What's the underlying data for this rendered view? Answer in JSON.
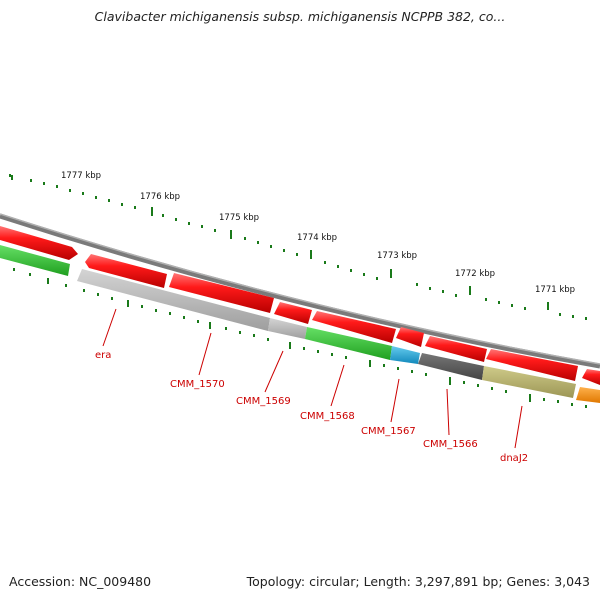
{
  "title": "Clavibacter michiganensis subsp. michiganensis NCPPB 382, co...",
  "footer": {
    "accession": "Accession: NC_009480",
    "summary": "Topology: circular; Length: 3,297,891 bp; Genes: 3,043"
  },
  "scale_labels": [
    "1777 kbp",
    "1776 kbp",
    "1775 kbp",
    "1774 kbp",
    "1773 kbp",
    "1772 kbp",
    "1771 kbp"
  ],
  "gene_labels": [
    "era",
    "CMM_1570",
    "CMM_1569",
    "CMM_1568",
    "CMM_1567",
    "CMM_1566",
    "dnaJ2"
  ],
  "colors": {
    "forward_gene": "#ee1111",
    "reverse_gray": "#b4b4b4",
    "reverse_green": "#33cc33",
    "reverse_cyan": "#22aadd",
    "reverse_dark": "#5a5a5a",
    "reverse_olive": "#b5b06a",
    "reverse_orange": "#ff8c00",
    "backbone": "#808080",
    "tick": "#1a7a1a",
    "label": "#cc0000"
  }
}
